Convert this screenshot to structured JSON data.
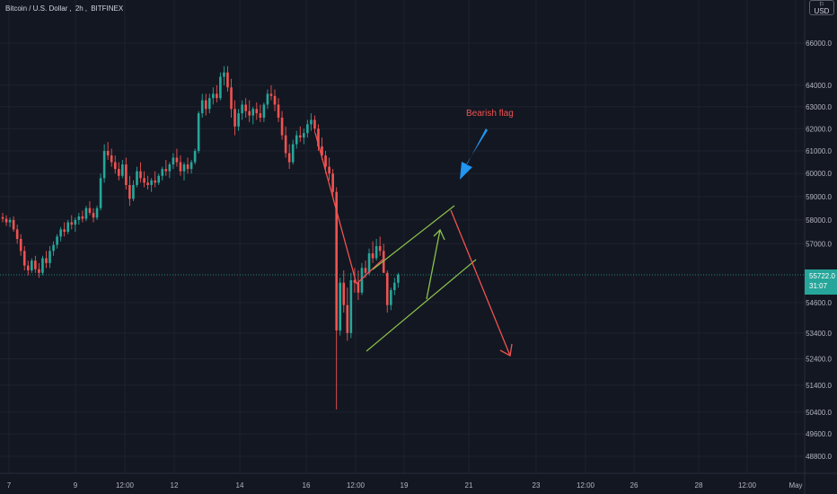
{
  "title": {
    "symbol": "Bitcoin / U.S. Dollar",
    "interval": "2h",
    "exchange": "BITFINEX"
  },
  "currency": "USD",
  "currency_icon": "flag-icon",
  "last_price": {
    "value": "55722.0",
    "countdown": "31:07",
    "color": "#26a69a"
  },
  "annotation": {
    "text": "Bearish flag",
    "color": "#ef5350",
    "arrow_color": "#2196f3"
  },
  "colors": {
    "background": "#131722",
    "grid": "#1e222d",
    "up": "#26a69a",
    "down": "#ef5350",
    "axis_text": "#b2b5be",
    "flag_lines": "#8bc34a",
    "trend_lines": "#ef5350"
  },
  "chart_data": {
    "type": "candlestick",
    "yscale": "log",
    "grid": true,
    "ylim": [
      48200,
      67500
    ],
    "y_ticks": [
      "48800.0",
      "49600.0",
      "50400.0",
      "51400.0",
      "52400.0",
      "53400.0",
      "54600.0",
      "57000.0",
      "58000.0",
      "59000.0",
      "60000.0",
      "61000.0",
      "62000.0",
      "63000.0",
      "64000.0",
      "66000.0"
    ],
    "x_ticks": [
      "7",
      "9",
      "12:00",
      "12",
      "14",
      "16",
      "12:00",
      "19",
      "21",
      "23",
      "12:00",
      "26",
      "28",
      "12:00",
      "May"
    ],
    "ohlc": [
      [
        58120,
        58300,
        57900,
        58050
      ],
      [
        58050,
        58200,
        57750,
        57900
      ],
      [
        57900,
        58100,
        57700,
        58000
      ],
      [
        58000,
        58150,
        57500,
        57600
      ],
      [
        57600,
        57800,
        57000,
        57200
      ],
      [
        57200,
        57400,
        56500,
        56700
      ],
      [
        56700,
        56900,
        55900,
        56100
      ],
      [
        56100,
        56300,
        55700,
        55900
      ],
      [
        55900,
        56400,
        55800,
        56300
      ],
      [
        56300,
        56500,
        55800,
        55950
      ],
      [
        55950,
        56200,
        55600,
        55800
      ],
      [
        55800,
        56500,
        55700,
        56400
      ],
      [
        56400,
        56700,
        56000,
        56200
      ],
      [
        56200,
        56900,
        56000,
        56700
      ],
      [
        56700,
        57100,
        56500,
        56950
      ],
      [
        56950,
        57400,
        56800,
        57300
      ],
      [
        57300,
        57700,
        57100,
        57600
      ],
      [
        57600,
        57900,
        57300,
        57500
      ],
      [
        57500,
        58000,
        57400,
        57900
      ],
      [
        57900,
        58200,
        57600,
        57800
      ],
      [
        57800,
        58100,
        57500,
        58000
      ],
      [
        58000,
        58300,
        57800,
        58150
      ],
      [
        58150,
        58400,
        57900,
        58050
      ],
      [
        58050,
        58600,
        57950,
        58500
      ],
      [
        58500,
        58800,
        58200,
        58300
      ],
      [
        58300,
        58500,
        57900,
        58100
      ],
      [
        58100,
        58600,
        58000,
        58500
      ],
      [
        58500,
        60000,
        58400,
        59800
      ],
      [
        59800,
        61300,
        59600,
        61000
      ],
      [
        61000,
        61400,
        60600,
        60800
      ],
      [
        60800,
        61100,
        60300,
        60500
      ],
      [
        60500,
        60800,
        60000,
        60200
      ],
      [
        60200,
        60500,
        59700,
        59900
      ],
      [
        59900,
        60600,
        59800,
        60400
      ],
      [
        60400,
        60700,
        59300,
        59500
      ],
      [
        59500,
        59900,
        58600,
        58900
      ],
      [
        58900,
        59700,
        58800,
        59500
      ],
      [
        59500,
        60300,
        59400,
        60100
      ],
      [
        60100,
        60500,
        59600,
        59800
      ],
      [
        59800,
        60100,
        59400,
        59600
      ],
      [
        59600,
        59900,
        59300,
        59500
      ],
      [
        59500,
        59800,
        59200,
        59700
      ],
      [
        59700,
        60100,
        59400,
        59600
      ],
      [
        59600,
        60000,
        59500,
        59900
      ],
      [
        59900,
        60300,
        59700,
        60200
      ],
      [
        60200,
        60600,
        59900,
        60100
      ],
      [
        60100,
        60500,
        59800,
        60400
      ],
      [
        60400,
        60900,
        60200,
        60700
      ],
      [
        60700,
        61100,
        60300,
        60500
      ],
      [
        60500,
        60800,
        59900,
        60100
      ],
      [
        60100,
        60500,
        59700,
        60400
      ],
      [
        60400,
        60700,
        60000,
        60200
      ],
      [
        60200,
        60600,
        60000,
        60500
      ],
      [
        60500,
        61100,
        60400,
        61000
      ],
      [
        61000,
        62800,
        60900,
        62700
      ],
      [
        62700,
        63600,
        62500,
        63300
      ],
      [
        63300,
        63600,
        62600,
        62900
      ],
      [
        62900,
        63600,
        62700,
        63400
      ],
      [
        63400,
        63900,
        63100,
        63600
      ],
      [
        63600,
        64000,
        63200,
        63400
      ],
      [
        63400,
        64600,
        63300,
        64400
      ],
      [
        64400,
        64900,
        64000,
        64600
      ],
      [
        64600,
        64900,
        63700,
        63900
      ],
      [
        63900,
        64300,
        62500,
        62900
      ],
      [
        62900,
        63300,
        61700,
        62100
      ],
      [
        62100,
        62900,
        61900,
        62700
      ],
      [
        62700,
        63300,
        62400,
        63100
      ],
      [
        63100,
        63400,
        62500,
        62800
      ],
      [
        62800,
        63300,
        62300,
        62600
      ],
      [
        62600,
        63000,
        62200,
        62900
      ],
      [
        62900,
        63200,
        62400,
        62700
      ],
      [
        62700,
        63100,
        62300,
        62500
      ],
      [
        62500,
        63200,
        62300,
        63100
      ],
      [
        63100,
        63800,
        62900,
        63600
      ],
      [
        63600,
        64000,
        63300,
        63500
      ],
      [
        63500,
        63800,
        62800,
        63100
      ],
      [
        63100,
        63400,
        62300,
        62500
      ],
      [
        62500,
        62800,
        61500,
        61700
      ],
      [
        61700,
        62100,
        60700,
        60900
      ],
      [
        60900,
        61300,
        60200,
        60500
      ],
      [
        60500,
        61500,
        60400,
        61300
      ],
      [
        61300,
        61900,
        61100,
        61700
      ],
      [
        61700,
        62100,
        61400,
        61600
      ],
      [
        61600,
        62000,
        61300,
        61800
      ],
      [
        61800,
        62400,
        61600,
        62200
      ],
      [
        62200,
        62700,
        61900,
        62400
      ],
      [
        62400,
        62600,
        61800,
        62000
      ],
      [
        62000,
        62200,
        61000,
        61200
      ],
      [
        61200,
        61600,
        60600,
        60800
      ],
      [
        60800,
        61000,
        60000,
        60300
      ],
      [
        60300,
        60700,
        59700,
        60000
      ],
      [
        60000,
        60200,
        58900,
        59200
      ],
      [
        59200,
        59400,
        50500,
        53500
      ],
      [
        53500,
        55600,
        53300,
        55400
      ],
      [
        55400,
        55900,
        54200,
        54500
      ],
      [
        54500,
        55200,
        53100,
        53400
      ],
      [
        53400,
        55800,
        53200,
        55500
      ],
      [
        55500,
        56000,
        55000,
        55400
      ],
      [
        55400,
        55900,
        54700,
        55000
      ],
      [
        55000,
        56200,
        54900,
        56000
      ],
      [
        56000,
        56300,
        55600,
        55800
      ],
      [
        55800,
        56800,
        55700,
        56600
      ],
      [
        56600,
        57100,
        56200,
        56400
      ],
      [
        56400,
        57200,
        56300,
        56900
      ],
      [
        56900,
        57300,
        56500,
        56700
      ],
      [
        56700,
        57000,
        55800,
        55800
      ],
      [
        55800,
        55900,
        54200,
        54500
      ],
      [
        54500,
        55200,
        54300,
        55100
      ],
      [
        55100,
        55600,
        54900,
        55400
      ],
      [
        55400,
        55800,
        55200,
        55722
      ]
    ]
  }
}
